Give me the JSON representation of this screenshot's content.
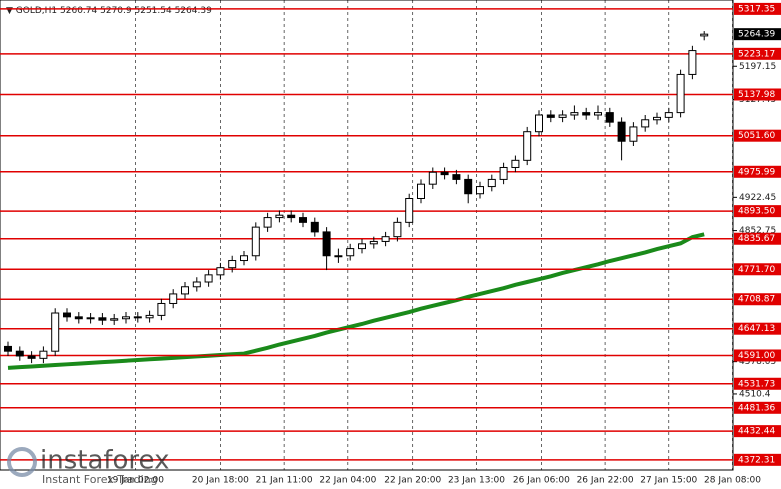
{
  "chart_data": {
    "type": "candlestick",
    "symbol": "GOLD,H1",
    "candles": [
      [
        4610,
        4620,
        4590,
        4600
      ],
      [
        4600,
        4610,
        4580,
        4590
      ],
      [
        4590,
        4600,
        4575,
        4585
      ],
      [
        4585,
        4610,
        4575,
        4600
      ],
      [
        4600,
        4690,
        4590,
        4680
      ],
      [
        4680,
        4690,
        4662,
        4672
      ],
      [
        4672,
        4682,
        4658,
        4668
      ],
      [
        4668,
        4680,
        4658,
        4670
      ],
      [
        4670,
        4680,
        4655,
        4665
      ],
      [
        4665,
        4678,
        4655,
        4668
      ],
      [
        4668,
        4682,
        4658,
        4672
      ],
      [
        4672,
        4682,
        4660,
        4670
      ],
      [
        4670,
        4685,
        4660,
        4675
      ],
      [
        4675,
        4710,
        4665,
        4700
      ],
      [
        4700,
        4730,
        4690,
        4720
      ],
      [
        4720,
        4745,
        4710,
        4735
      ],
      [
        4735,
        4755,
        4725,
        4745
      ],
      [
        4745,
        4770,
        4735,
        4760
      ],
      [
        4760,
        4785,
        4750,
        4775
      ],
      [
        4775,
        4800,
        4765,
        4790
      ],
      [
        4790,
        4810,
        4780,
        4800
      ],
      [
        4800,
        4870,
        4790,
        4860
      ],
      [
        4860,
        4890,
        4850,
        4880
      ],
      [
        4880,
        4895,
        4870,
        4885
      ],
      [
        4885,
        4895,
        4870,
        4880
      ],
      [
        4880,
        4890,
        4860,
        4870
      ],
      [
        4870,
        4880,
        4840,
        4850
      ],
      [
        4850,
        4860,
        4770,
        4800
      ],
      [
        4800,
        4815,
        4785,
        4800
      ],
      [
        4800,
        4825,
        4790,
        4815
      ],
      [
        4815,
        4835,
        4805,
        4825
      ],
      [
        4825,
        4840,
        4815,
        4830
      ],
      [
        4830,
        4850,
        4820,
        4840
      ],
      [
        4840,
        4880,
        4830,
        4870
      ],
      [
        4870,
        4930,
        4860,
        4920
      ],
      [
        4920,
        4960,
        4910,
        4950
      ],
      [
        4950,
        4985,
        4940,
        4975
      ],
      [
        4975,
        4985,
        4960,
        4970
      ],
      [
        4970,
        4980,
        4950,
        4960
      ],
      [
        4960,
        4970,
        4910,
        4930
      ],
      [
        4930,
        4955,
        4920,
        4945
      ],
      [
        4945,
        4970,
        4935,
        4960
      ],
      [
        4960,
        4995,
        4950,
        4985
      ],
      [
        4985,
        5010,
        4975,
        5000
      ],
      [
        5000,
        5070,
        4990,
        5060
      ],
      [
        5060,
        5105,
        5050,
        5095
      ],
      [
        5095,
        5105,
        5080,
        5090
      ],
      [
        5090,
        5105,
        5080,
        5095
      ],
      [
        5095,
        5115,
        5085,
        5100
      ],
      [
        5100,
        5110,
        5085,
        5095
      ],
      [
        5095,
        5115,
        5085,
        5100
      ],
      [
        5100,
        5110,
        5070,
        5080
      ],
      [
        5080,
        5090,
        5000,
        5040
      ],
      [
        5040,
        5080,
        5030,
        5070
      ],
      [
        5070,
        5095,
        5060,
        5085
      ],
      [
        5085,
        5100,
        5075,
        5090
      ],
      [
        5090,
        5110,
        5080,
        5100
      ],
      [
        5100,
        5190,
        5090,
        5180
      ],
      [
        5180,
        5240,
        5170,
        5230
      ],
      [
        5260.74,
        5270.9,
        5251.54,
        5264.39
      ]
    ],
    "candle_color": "#000000",
    "moving_average": {
      "color": "#1a8a1a",
      "values": [
        4565,
        4566.5,
        4568,
        4569.5,
        4571,
        4572.5,
        4574,
        4575.5,
        4577,
        4578.5,
        4580,
        4581.5,
        4583,
        4584.5,
        4586,
        4587.5,
        4589,
        4590.5,
        4592,
        4593.5,
        4595,
        4601,
        4607,
        4614,
        4620,
        4626,
        4632,
        4639,
        4645,
        4651,
        4657,
        4664,
        4670,
        4676,
        4682,
        4689,
        4695,
        4701,
        4707,
        4714,
        4720,
        4726,
        4732,
        4739,
        4745,
        4751,
        4757,
        4764,
        4770,
        4776,
        4782,
        4789,
        4795,
        4801,
        4807,
        4814,
        4820,
        4826,
        4839,
        4845
      ]
    },
    "levels": {
      "color": "#e00000",
      "values": [
        5317.35,
        5223.17,
        5137.98,
        5051.6,
        4975.99,
        4893.5,
        4835.67,
        4771.7,
        4708.87,
        4647.13,
        4591.0,
        4531.73,
        4481.36,
        4432.44,
        4372.31
      ],
      "value_labels": [
        "5317.35",
        "5223.17",
        "5137.98",
        "5051.60",
        "4975.99",
        "4893.50",
        "4835.67",
        "4771.70",
        "4708.87",
        "4647.13",
        "4591.00",
        "4531.73",
        "4481.36",
        "4432.44",
        "4372.31"
      ]
    },
    "ylim": [
      4351,
      5336
    ],
    "yticks": [
      5197.15,
      5127.45,
      4922.45,
      4852.75,
      4578.05,
      4510.4
    ],
    "xticks": [
      {
        "value": 10.8,
        "label": "19 Jan 02:00"
      },
      {
        "value": 18,
        "label": "20 Jan 18:00"
      },
      {
        "value": 23.4,
        "label": "21 Jan 11:00"
      },
      {
        "value": 28.8,
        "label": "22 Jan 04:00"
      },
      {
        "value": 34.3,
        "label": "22 Jan 20:00"
      },
      {
        "value": 39.7,
        "label": "23 Jan 13:00"
      },
      {
        "value": 45.2,
        "label": "26 Jan 06:00"
      },
      {
        "value": 50.6,
        "label": "26 Jan 22:00"
      },
      {
        "value": 56,
        "label": "27 Jan 15:00"
      },
      {
        "value": 61.4,
        "label": "28 Jan 08:00"
      }
    ],
    "grid": true
  },
  "watermark": {
    "brand": "instaforex",
    "tagline": "Instant Forex Trading"
  }
}
